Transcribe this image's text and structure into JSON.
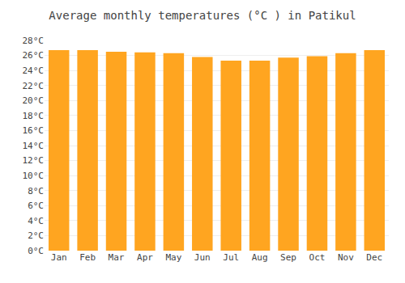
{
  "chart_data": {
    "type": "bar",
    "title": "Average monthly temperatures (°C ) in Patikul",
    "categories": [
      "Jan",
      "Feb",
      "Mar",
      "Apr",
      "May",
      "Jun",
      "Jul",
      "Aug",
      "Sep",
      "Oct",
      "Nov",
      "Dec"
    ],
    "values": [
      26.7,
      26.7,
      26.5,
      26.4,
      26.3,
      25.8,
      25.3,
      25.3,
      25.7,
      25.9,
      26.3,
      26.7
    ],
    "color": "#FFA520",
    "ylim": [
      0,
      28
    ],
    "yticks": [
      {
        "value": 0,
        "label": "0°C"
      },
      {
        "value": 2,
        "label": "2°C"
      },
      {
        "value": 4,
        "label": "4°C"
      },
      {
        "value": 6,
        "label": "6°C"
      },
      {
        "value": 8,
        "label": "8°C"
      },
      {
        "value": 10,
        "label": "10°C"
      },
      {
        "value": 12,
        "label": "12°C"
      },
      {
        "value": 14,
        "label": "14°C"
      },
      {
        "value": 16,
        "label": "16°C"
      },
      {
        "value": 18,
        "label": "18°C"
      },
      {
        "value": 20,
        "label": "20°C"
      },
      {
        "value": 22,
        "label": "22°C"
      },
      {
        "value": 24,
        "label": "24°C"
      },
      {
        "value": 26,
        "label": "26°C"
      },
      {
        "value": 28,
        "label": "28°C"
      }
    ],
    "grid": true
  }
}
